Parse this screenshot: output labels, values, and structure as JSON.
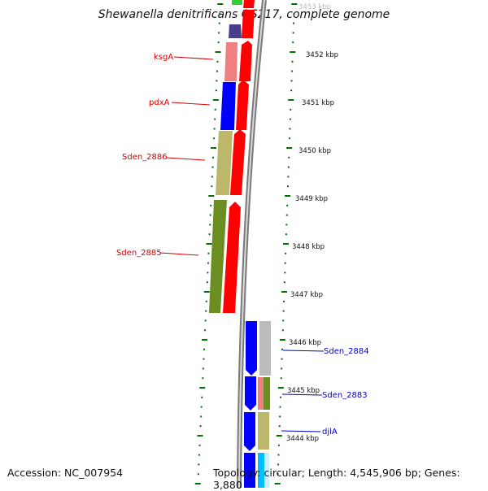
{
  "title": "Shewanella denitrificans OS217, complete genome",
  "accession_label": "Accession: NC_007954",
  "topology_label": "Topology: circular; Length: 4,545,906 bp; Genes: 3,880",
  "kbp_labels": [
    {
      "text": "3453 kbp",
      "faded": true
    },
    {
      "text": "3452 kbp"
    },
    {
      "text": "3451 kbp"
    },
    {
      "text": "3450 kbp"
    },
    {
      "text": "3449 kbp"
    },
    {
      "text": "3448 kbp"
    },
    {
      "text": "3447 kbp"
    },
    {
      "text": "3446 kbp"
    },
    {
      "text": "3445 kbp"
    },
    {
      "text": "3444 kbp"
    }
  ],
  "genes_left": [
    {
      "name": "ksgA"
    },
    {
      "name": "pdxA"
    },
    {
      "name": "Sden_2886"
    },
    {
      "name": "Sden_2885"
    }
  ],
  "genes_right": [
    {
      "name": "Sden_2884"
    },
    {
      "name": "Sden_2883"
    },
    {
      "name": "djlA"
    }
  ],
  "colors": {
    "forward_strand": "#ff0000",
    "reverse_strand": "#0000ff",
    "olive": "#6b8e23",
    "khaki": "#bdb76b",
    "pink": "#f08080",
    "grey": "#bbbbbb",
    "backbone": "#888888",
    "ticks": "#007000"
  }
}
